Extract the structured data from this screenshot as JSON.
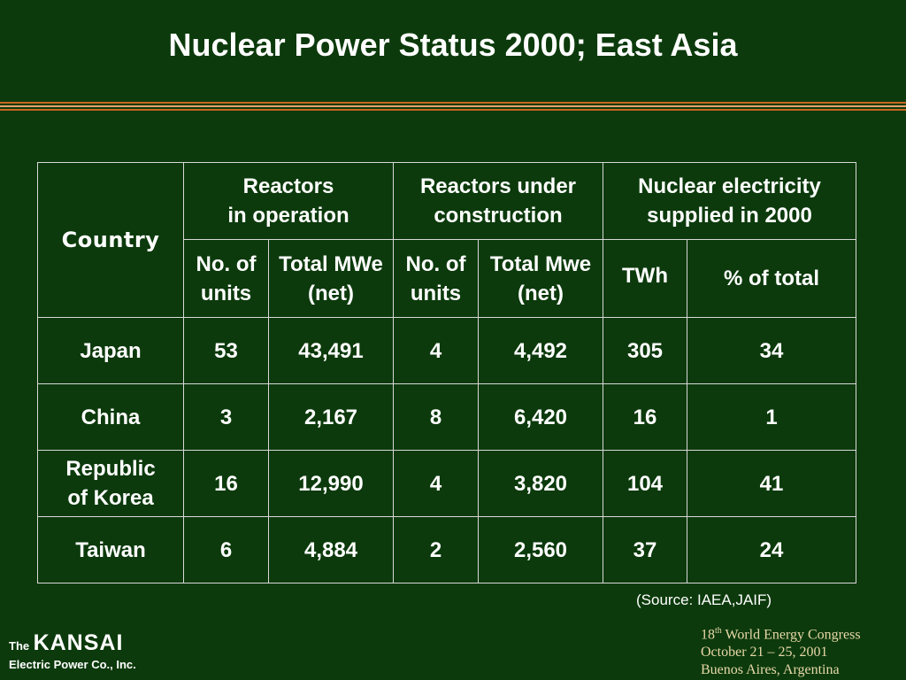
{
  "slide": {
    "title": "Nuclear Power Status 2000; East Asia"
  },
  "table": {
    "country_header": "Country",
    "group_headers": {
      "operation": [
        "Reactors",
        "in operation"
      ],
      "construction": [
        "Reactors under",
        "construction"
      ],
      "electricity": [
        "Nuclear electricity",
        "supplied in 2000"
      ]
    },
    "sub_headers": {
      "op_units": [
        "No. of",
        "units"
      ],
      "op_mwe": [
        "Total MWe",
        "(net)"
      ],
      "con_units": [
        "No. of",
        "units"
      ],
      "con_mwe": [
        "Total Mwe",
        "(net)"
      ],
      "twh": "TWh",
      "pct": "% of total"
    },
    "rows": [
      {
        "country": [
          "Japan"
        ],
        "op_units": "53",
        "op_mwe": "43,491",
        "con_units": "4",
        "con_mwe": "4,492",
        "twh": "305",
        "pct": "34"
      },
      {
        "country": [
          "China"
        ],
        "op_units": "3",
        "op_mwe": "2,167",
        "con_units": "8",
        "con_mwe": "6,420",
        "twh": "16",
        "pct": "1"
      },
      {
        "country": [
          "Republic",
          "of Korea"
        ],
        "op_units": "16",
        "op_mwe": "12,990",
        "con_units": "4",
        "con_mwe": "3,820",
        "twh": "104",
        "pct": "41"
      },
      {
        "country": [
          "Taiwan"
        ],
        "op_units": "6",
        "op_mwe": "4,884",
        "con_units": "2",
        "con_mwe": "2,560",
        "twh": "37",
        "pct": "24"
      }
    ]
  },
  "source_note": "(Source: IAEA,JAIF)",
  "logo": {
    "the": "The",
    "name": "KANSAI",
    "subtitle": "Electric Power Co., Inc."
  },
  "event": {
    "ordinal_number": "18",
    "ordinal_suffix": "th",
    "line1_rest": " World Energy Congress",
    "line2": "October 21 – 25, 2001",
    "line3": "Buenos Aires, Argentina"
  },
  "colors": {
    "background": "#0c3a0c",
    "text": "#ffffff",
    "table_border": "#d8d8d8",
    "rule_orange": "#c8641e",
    "rule_light": "#e8a070",
    "event_text": "#e8d8a8"
  }
}
